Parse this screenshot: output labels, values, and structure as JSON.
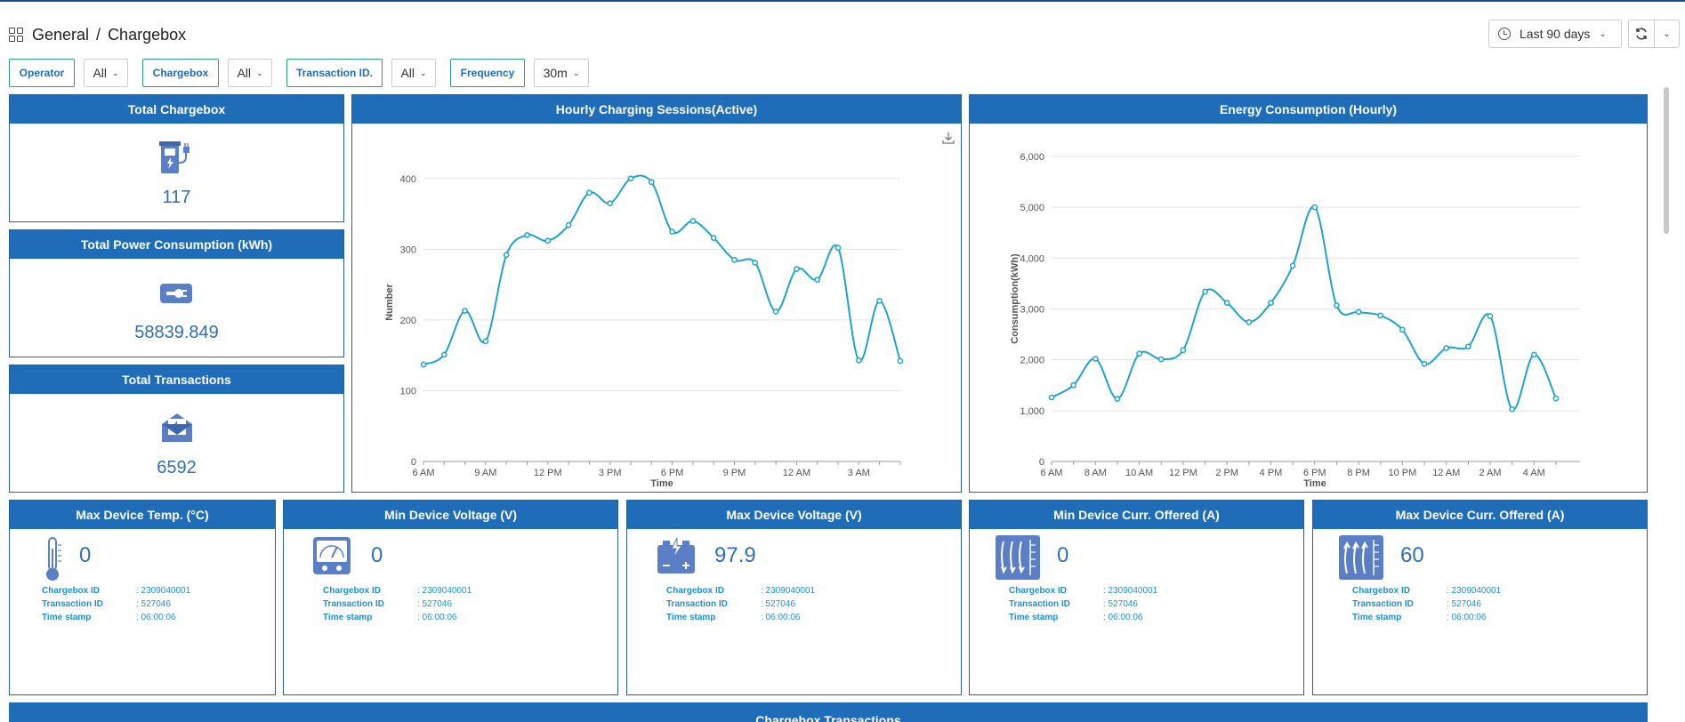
{
  "breadcrumb": {
    "root": "General",
    "separator": "/",
    "current": "Chargebox"
  },
  "time_range": {
    "label": "Last 90 days"
  },
  "filters": [
    {
      "label": "Operator",
      "value": "All"
    },
    {
      "label": "Chargebox",
      "value": "All"
    },
    {
      "label": "Transaction ID.",
      "value": "All"
    },
    {
      "label": "Frequency",
      "value": "30m"
    }
  ],
  "stats": {
    "chargebox": {
      "title": "Total Chargebox",
      "value": "117",
      "icon": "charging-station-icon"
    },
    "power": {
      "title": "Total Power Consumption (kWh)",
      "value": "58839.849",
      "icon": "battery-plug-icon"
    },
    "transactions": {
      "title": "Total Transactions",
      "value": "6592",
      "icon": "envelope-open-icon"
    }
  },
  "devices": [
    {
      "title": "Max Device Temp. (°C)",
      "value": "0",
      "icon": "thermometer-icon",
      "chargebox_label": "Chargebox ID",
      "chargebox_id": ": 2309040001",
      "transaction_label": "Transaction ID",
      "transaction_id": ": 527046",
      "timestamp_label": "Time stamp",
      "timestamp": ": 06:00:06"
    },
    {
      "title": "Min Device Voltage (V)",
      "value": "0",
      "icon": "voltmeter-icon",
      "chargebox_label": "Chargebox ID",
      "chargebox_id": ": 2309040001",
      "transaction_label": "Transaction ID",
      "transaction_id": ": 527046",
      "timestamp_label": "Time stamp",
      "timestamp": ": 06:00:06"
    },
    {
      "title": "Max Device Voltage (V)",
      "value": "97.9",
      "icon": "battery-charge-icon",
      "chargebox_label": "Chargebox ID",
      "chargebox_id": ": 2309040001",
      "transaction_label": "Transaction ID",
      "transaction_id": ": 527046",
      "timestamp_label": "Time stamp",
      "timestamp": ": 06:00:06"
    },
    {
      "title": "Min Device Curr. Offered (A)",
      "value": "0",
      "icon": "current-down-icon",
      "chargebox_label": "Chargebox ID",
      "chargebox_id": ": 2309040001",
      "transaction_label": "Transaction ID",
      "transaction_id": ": 527046",
      "timestamp_label": "Time stamp",
      "timestamp": ": 06:00:06"
    },
    {
      "title": "Max Device Curr. Offered (A)",
      "value": "60",
      "icon": "current-up-icon",
      "chargebox_label": "Chargebox ID",
      "chargebox_id": ": 2309040001",
      "transaction_label": "Transaction ID",
      "transaction_id": ": 527046",
      "timestamp_label": "Time stamp",
      "timestamp": ": 06:00:06"
    }
  ],
  "bottom_panel": {
    "title": "Chargebox Transactions"
  },
  "colors": {
    "accent": "#1f6db8",
    "line": "#1fa3c9",
    "value_text": "#2f6fb2",
    "meta_text": "#1f8fcf"
  },
  "chart_data": [
    {
      "type": "line",
      "title": "Hourly Charging Sessions(Active)",
      "xlabel": "Time",
      "ylabel": "Number",
      "x_ticks": [
        "6 AM",
        "9 AM",
        "12 PM",
        "3 PM",
        "6 PM",
        "9 PM",
        "12 AM",
        "3 AM"
      ],
      "y_ticks": [
        "0",
        "100",
        "200",
        "300",
        "400"
      ],
      "ylim": [
        0,
        450
      ],
      "grid": true,
      "series": [
        {
          "x": [
            6,
            7,
            8,
            9,
            10,
            11,
            12,
            13,
            14,
            15,
            16,
            17,
            18,
            19,
            20,
            21,
            22,
            23,
            24,
            25,
            26,
            27,
            28,
            29
          ],
          "values": [
            137,
            151,
            213,
            170,
            292,
            320,
            312,
            334,
            380,
            365,
            400,
            395,
            325,
            340,
            316,
            285,
            281,
            212,
            272,
            257,
            302,
            143,
            227,
            142
          ]
        }
      ]
    },
    {
      "type": "line",
      "title": "Energy Consumption (Hourly)",
      "xlabel": "Time",
      "ylabel": "Consumption(kWh)",
      "x_ticks": [
        "6 AM",
        "8 AM",
        "10 AM",
        "12 PM",
        "2 PM",
        "4 PM",
        "6 PM",
        "8 PM",
        "10 PM",
        "12 AM",
        "2 AM",
        "4 AM"
      ],
      "y_ticks": [
        "0",
        "1,000",
        "2,000",
        "3,000",
        "4,000",
        "5,000",
        "6,000"
      ],
      "ylim": [
        0,
        6400
      ],
      "grid": true,
      "series": [
        {
          "x": [
            6,
            7,
            8,
            9,
            10,
            11,
            12,
            13,
            14,
            15,
            16,
            17,
            18,
            19,
            20,
            21,
            22,
            23,
            24,
            25,
            26,
            27,
            28,
            29
          ],
          "values": [
            1260,
            1500,
            2020,
            1230,
            2120,
            2010,
            2190,
            3340,
            3120,
            2740,
            3120,
            3850,
            5000,
            3070,
            2940,
            2870,
            2590,
            1920,
            2230,
            2260,
            2860,
            1030,
            2100,
            1240
          ]
        }
      ]
    }
  ]
}
